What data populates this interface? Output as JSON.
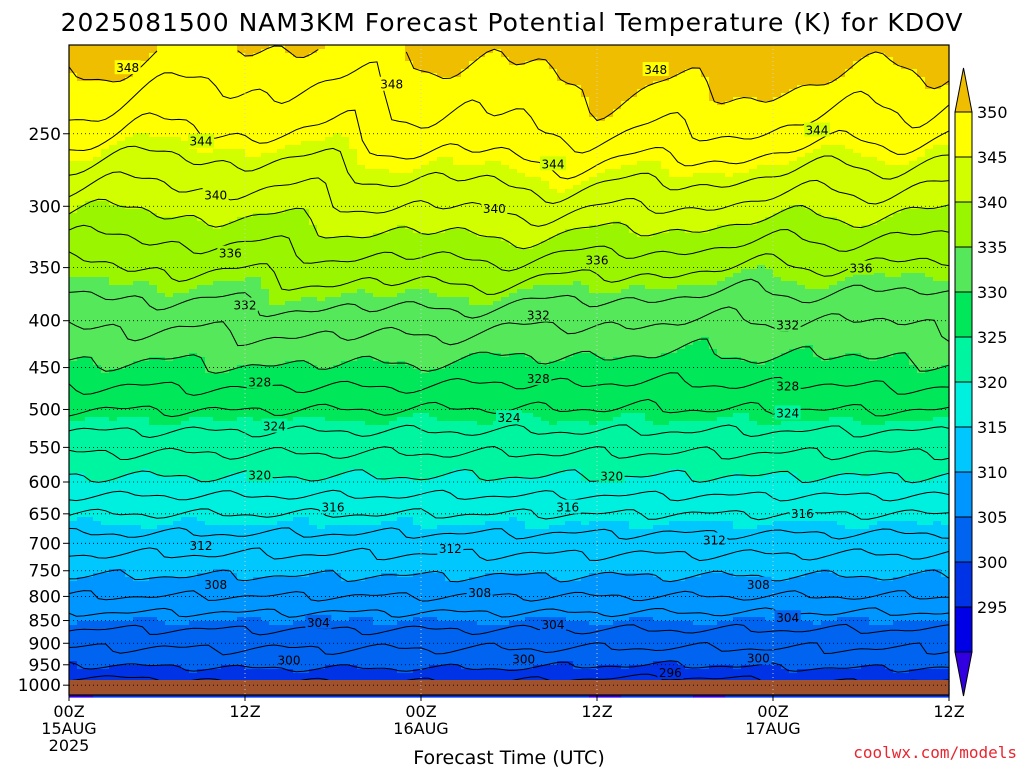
{
  "title": "2025081500 NAM3KM Forecast Potential Temperature (K) for KDOV",
  "xlabel": "Forecast Time (UTC)",
  "credit": "coolwx.com/models",
  "credit_color": "#e8262f",
  "ground_color": "#a0522d",
  "xticks": [
    {
      "line1": "00Z",
      "line2": "15AUG",
      "line3": "2025"
    },
    {
      "line1": "12Z",
      "line2": "",
      "line3": ""
    },
    {
      "line1": "00Z",
      "line2": "16AUG",
      "line3": ""
    },
    {
      "line1": "12Z",
      "line2": "",
      "line3": ""
    },
    {
      "line1": "00Z",
      "line2": "17AUG",
      "line3": ""
    },
    {
      "line1": "12Z",
      "line2": "",
      "line3": ""
    }
  ],
  "yticks": [
    "250",
    "300",
    "350",
    "400",
    "450",
    "500",
    "550",
    "600",
    "650",
    "700",
    "750",
    "800",
    "850",
    "900",
    "950",
    "1000"
  ],
  "colorbar": {
    "levels": [
      "350",
      "345",
      "340",
      "335",
      "330",
      "325",
      "320",
      "315",
      "310",
      "305",
      "300",
      "295"
    ],
    "colors": [
      "#f0be00",
      "#ffff00",
      "#d2ff00",
      "#9af500",
      "#55e85a",
      "#00e85a",
      "#00f5a0",
      "#00f0e0",
      "#00c8ff",
      "#0096ff",
      "#0064f0",
      "#0032e6",
      "#0000e6",
      "#3200e0"
    ]
  },
  "chart_data": {
    "type": "heatmap",
    "title": "2025081500 NAM3KM Forecast Potential Temperature (K) for KDOV",
    "xlabel": "Forecast Time (UTC)",
    "ylabel": "",
    "variable": "Potential Temperature (K)",
    "station": "KDOV",
    "x_range_hours": [
      0,
      60
    ],
    "y_axis": "pressure (hPa), log scale, inverted",
    "y_range_hpa": [
      1025,
      200
    ],
    "contour_interval_K": 2,
    "fill_interval_K": 5,
    "levels_hpa": [
      200,
      250,
      300,
      350,
      400,
      450,
      500,
      550,
      600,
      650,
      700,
      750,
      800,
      850,
      900,
      950,
      1000
    ],
    "theta_profile_K": [
      351,
      347,
      341.5,
      336.5,
      332.5,
      329.5,
      326,
      322.5,
      319.5,
      316,
      313,
      310.5,
      308,
      305,
      302.5,
      300.5,
      297.5
    ],
    "contour_labels": [
      {
        "hour": 4,
        "hpa": 212,
        "value": "348"
      },
      {
        "hour": 22,
        "hpa": 221,
        "value": "348"
      },
      {
        "hour": 40,
        "hpa": 213,
        "value": "348"
      },
      {
        "hour": 9,
        "hpa": 255,
        "value": "344"
      },
      {
        "hour": 33,
        "hpa": 270,
        "value": "344"
      },
      {
        "hour": 51,
        "hpa": 248,
        "value": "344"
      },
      {
        "hour": 10,
        "hpa": 292,
        "value": "340"
      },
      {
        "hour": 29,
        "hpa": 302,
        "value": "340"
      },
      {
        "hour": 11,
        "hpa": 338,
        "value": "336"
      },
      {
        "hour": 36,
        "hpa": 344,
        "value": "336"
      },
      {
        "hour": 54,
        "hpa": 351,
        "value": "336"
      },
      {
        "hour": 12,
        "hpa": 385,
        "value": "332"
      },
      {
        "hour": 32,
        "hpa": 395,
        "value": "332"
      },
      {
        "hour": 49,
        "hpa": 405,
        "value": "332"
      },
      {
        "hour": 13,
        "hpa": 467,
        "value": "328"
      },
      {
        "hour": 32,
        "hpa": 463,
        "value": "328"
      },
      {
        "hour": 49,
        "hpa": 472,
        "value": "328"
      },
      {
        "hour": 14,
        "hpa": 522,
        "value": "324"
      },
      {
        "hour": 30,
        "hpa": 511,
        "value": "324"
      },
      {
        "hour": 49,
        "hpa": 505,
        "value": "324"
      },
      {
        "hour": 13,
        "hpa": 590,
        "value": "320"
      },
      {
        "hour": 37,
        "hpa": 592,
        "value": "320"
      },
      {
        "hour": 18,
        "hpa": 640,
        "value": "316"
      },
      {
        "hour": 34,
        "hpa": 640,
        "value": "316"
      },
      {
        "hour": 50,
        "hpa": 650,
        "value": "316"
      },
      {
        "hour": 9,
        "hpa": 705,
        "value": "312"
      },
      {
        "hour": 26,
        "hpa": 710,
        "value": "312"
      },
      {
        "hour": 44,
        "hpa": 695,
        "value": "312"
      },
      {
        "hour": 10,
        "hpa": 777,
        "value": "308"
      },
      {
        "hour": 28,
        "hpa": 793,
        "value": "308"
      },
      {
        "hour": 47,
        "hpa": 777,
        "value": "308"
      },
      {
        "hour": 17,
        "hpa": 855,
        "value": "304"
      },
      {
        "hour": 33,
        "hpa": 860,
        "value": "304"
      },
      {
        "hour": 49,
        "hpa": 845,
        "value": "304"
      },
      {
        "hour": 15,
        "hpa": 940,
        "value": "300"
      },
      {
        "hour": 31,
        "hpa": 937,
        "value": "300"
      },
      {
        "hour": 47,
        "hpa": 935,
        "value": "300"
      },
      {
        "hour": 41,
        "hpa": 970,
        "value": "296"
      }
    ]
  }
}
